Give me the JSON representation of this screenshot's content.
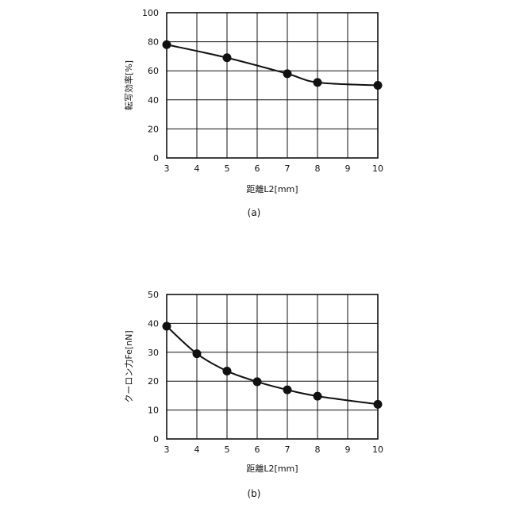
{
  "chart_data": [
    {
      "type": "line",
      "caption": "(a)",
      "xlabel": "距離L2[mm]",
      "ylabel": "転写効率[%]",
      "xlim": [
        3,
        10
      ],
      "ylim": [
        0,
        100
      ],
      "xticks": [
        "3",
        "4",
        "5",
        "6",
        "7",
        "8",
        "9",
        "10"
      ],
      "yticks": [
        "0",
        "20",
        "40",
        "60",
        "80",
        "100"
      ],
      "grid": true,
      "series": [
        {
          "x": [
            3,
            5,
            7,
            8,
            10
          ],
          "y": [
            78,
            69,
            58,
            52,
            50
          ]
        }
      ]
    },
    {
      "type": "line",
      "caption": "(b)",
      "xlabel": "距離L2[mm]",
      "ylabel": "クーロン力Fe[nN]",
      "xlim": [
        3,
        10
      ],
      "ylim": [
        0,
        50
      ],
      "xticks": [
        "3",
        "4",
        "5",
        "6",
        "7",
        "8",
        "9",
        "10"
      ],
      "yticks": [
        "0",
        "10",
        "20",
        "30",
        "40",
        "50"
      ],
      "grid": true,
      "series": [
        {
          "x": [
            3,
            4,
            5,
            6,
            7,
            8,
            10
          ],
          "y": [
            39,
            29.5,
            23.5,
            19.8,
            17,
            14.8,
            12
          ]
        }
      ]
    }
  ]
}
